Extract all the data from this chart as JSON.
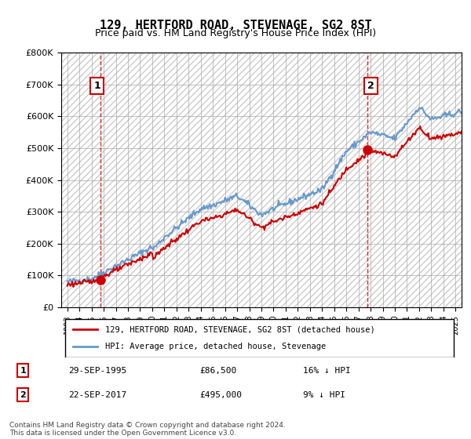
{
  "title": "129, HERTFORD ROAD, STEVENAGE, SG2 8ST",
  "subtitle": "Price paid vs. HM Land Registry's House Price Index (HPI)",
  "legend_line1": "129, HERTFORD ROAD, STEVENAGE, SG2 8ST (detached house)",
  "legend_line2": "HPI: Average price, detached house, Stevenage",
  "annotation1_label": "1",
  "annotation1_date": "29-SEP-1995",
  "annotation1_price": "£86,500",
  "annotation1_hpi": "16% ↓ HPI",
  "annotation2_label": "2",
  "annotation2_date": "22-SEP-2017",
  "annotation2_price": "£495,000",
  "annotation2_hpi": "9% ↓ HPI",
  "footnote": "Contains HM Land Registry data © Crown copyright and database right 2024.\nThis data is licensed under the Open Government Licence v3.0.",
  "hpi_color": "#6699cc",
  "price_color": "#cc0000",
  "dashed_line_color": "#cc0000",
  "marker_color": "#cc0000",
  "annotation_box_color": "#cc0000",
  "hatch_color": "#cccccc",
  "background_color": "#ffffff",
  "grid_color": "#cccccc",
  "ylim": [
    0,
    800000
  ],
  "yticks": [
    0,
    100000,
    200000,
    300000,
    400000,
    500000,
    600000,
    700000,
    800000
  ],
  "xlim_start": 1992.5,
  "xlim_end": 2025.5,
  "sale1_x": 1995.75,
  "sale1_y": 86500,
  "sale2_x": 2017.72,
  "sale2_y": 495000
}
